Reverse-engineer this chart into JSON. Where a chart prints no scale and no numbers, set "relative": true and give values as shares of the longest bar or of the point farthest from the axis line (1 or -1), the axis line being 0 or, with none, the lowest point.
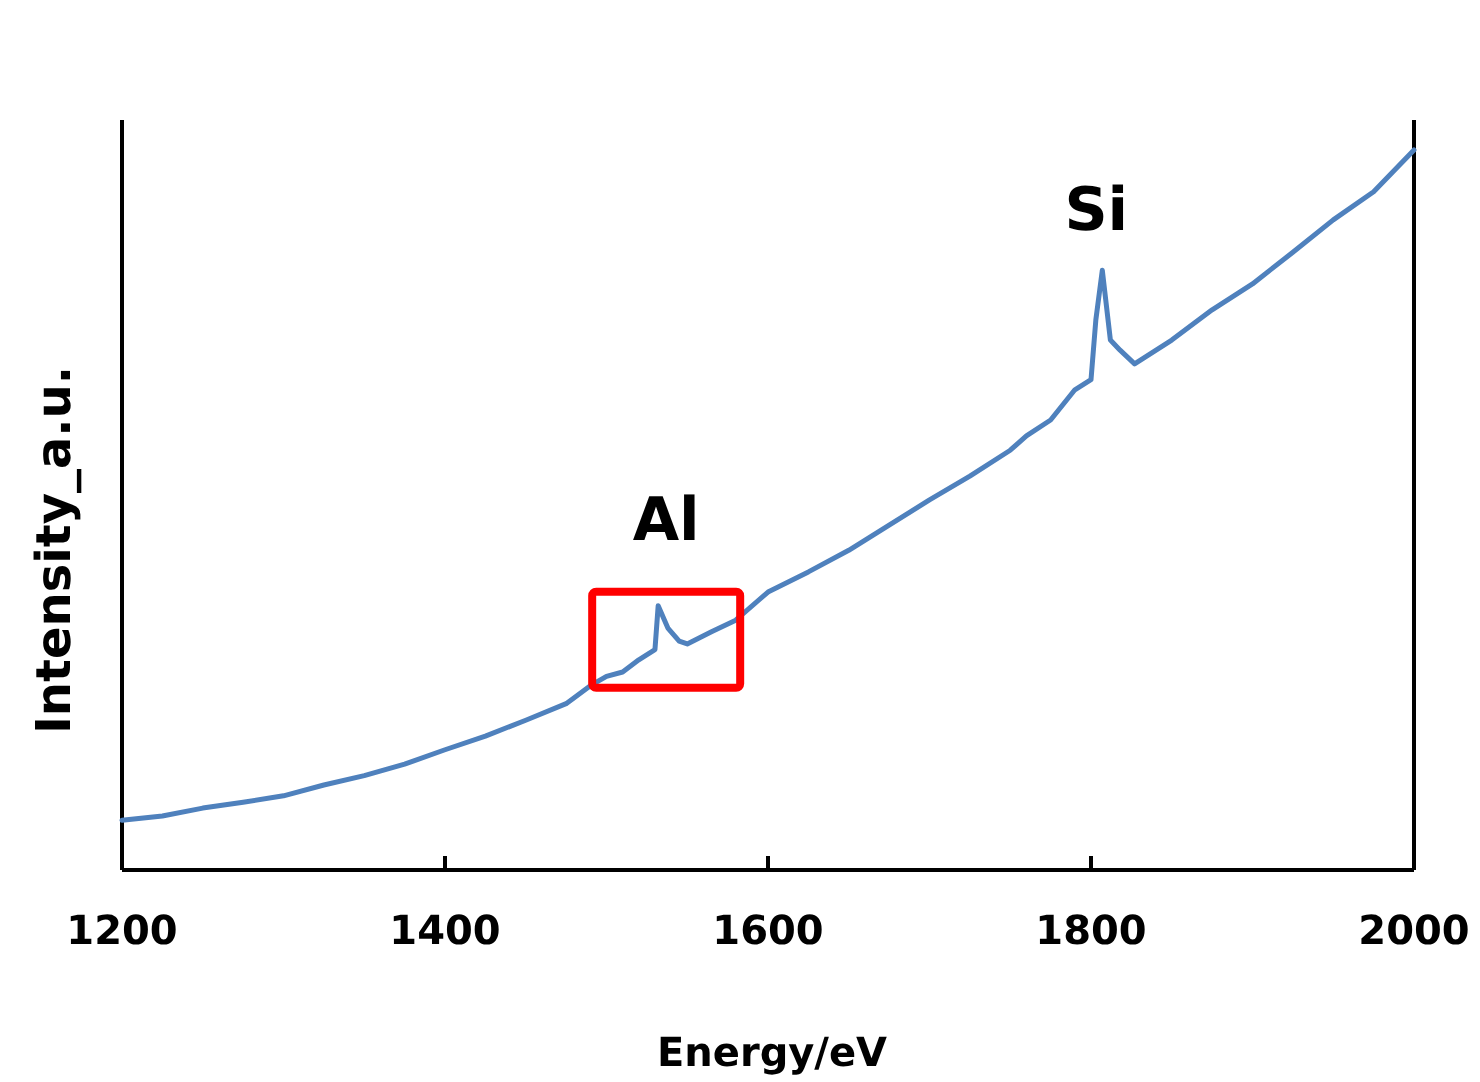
{
  "chart_data": {
    "type": "line",
    "xlabel": "Energy/eV",
    "ylabel": "Intensity_a.u.",
    "relative": true,
    "grid": false,
    "marker": "none",
    "line_style": "solid",
    "xlim": [
      1200,
      2000
    ],
    "xticks": [
      1200,
      1400,
      1600,
      1800,
      2000
    ],
    "x": [
      1200,
      1225,
      1250,
      1275,
      1300,
      1325,
      1350,
      1375,
      1400,
      1425,
      1450,
      1475,
      1490,
      1500,
      1510,
      1520,
      1530,
      1532,
      1538,
      1545,
      1550,
      1565,
      1580,
      1600,
      1625,
      1650,
      1675,
      1700,
      1725,
      1750,
      1760,
      1775,
      1790,
      1800,
      1803,
      1807,
      1812,
      1818,
      1827,
      1850,
      1875,
      1900,
      1925,
      1950,
      1975,
      2000
    ],
    "series": [
      {
        "color": "#4f81bd",
        "values": [
          0.069,
          0.075,
          0.086,
          0.094,
          0.103,
          0.118,
          0.131,
          0.147,
          0.167,
          0.186,
          0.208,
          0.231,
          0.256,
          0.269,
          0.275,
          0.292,
          0.306,
          0.367,
          0.336,
          0.318,
          0.314,
          0.331,
          0.347,
          0.386,
          0.414,
          0.444,
          0.479,
          0.514,
          0.547,
          0.583,
          0.603,
          0.625,
          0.667,
          0.681,
          0.764,
          0.833,
          0.736,
          0.722,
          0.703,
          0.736,
          0.778,
          0.814,
          0.858,
          0.903,
          0.942,
          1
        ]
      }
    ],
    "annotations": [
      {
        "text": "Al",
        "x": 1532,
        "y": 0.367
      },
      {
        "text": "Si",
        "x": 1807,
        "y": 0.833
      }
    ]
  }
}
